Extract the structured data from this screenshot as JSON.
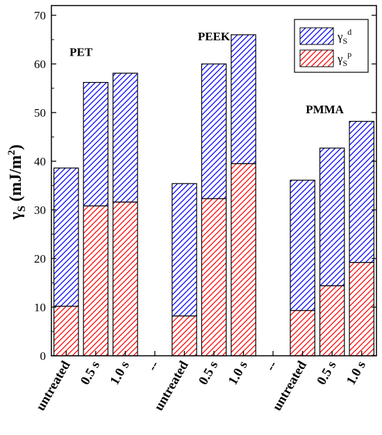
{
  "chart_data": {
    "type": "bar",
    "stacked": true,
    "categories": [
      "untreated",
      "0.5 s",
      "1.0 s",
      "--",
      "untreated",
      "0.5 s",
      "1.0 s",
      "--",
      "untreated",
      "0.5 s",
      "1.0 s"
    ],
    "groups": [
      {
        "label": "PET",
        "values_p": [
          10.2,
          30.8,
          31.6
        ],
        "values_total": [
          38.6,
          56.2,
          58.1
        ]
      },
      {
        "label": "PEEK",
        "values_p": [
          8.2,
          32.3,
          39.5
        ],
        "values_total": [
          35.4,
          60.0,
          66.0
        ]
      },
      {
        "label": "PMMA",
        "values_p": [
          9.3,
          14.4,
          19.2
        ],
        "values_total": [
          36.1,
          42.7,
          48.2
        ]
      }
    ],
    "series": [
      {
        "name": "γSd",
        "base": "γ",
        "sub": "S",
        "sup": "d",
        "color": "#0000ff"
      },
      {
        "name": "γSp",
        "base": "γ",
        "sub": "S",
        "sup": "p",
        "color": "#ff0000"
      }
    ],
    "ylabel": {
      "base": "γ",
      "sub": "S",
      "rest": " (mJ/m",
      "sup": "2",
      "end": ")"
    },
    "ylim": [
      0,
      72
    ],
    "yticks": [
      0,
      10,
      20,
      30,
      40,
      50,
      60,
      70
    ],
    "legend_position": "top-right",
    "grid": false
  }
}
